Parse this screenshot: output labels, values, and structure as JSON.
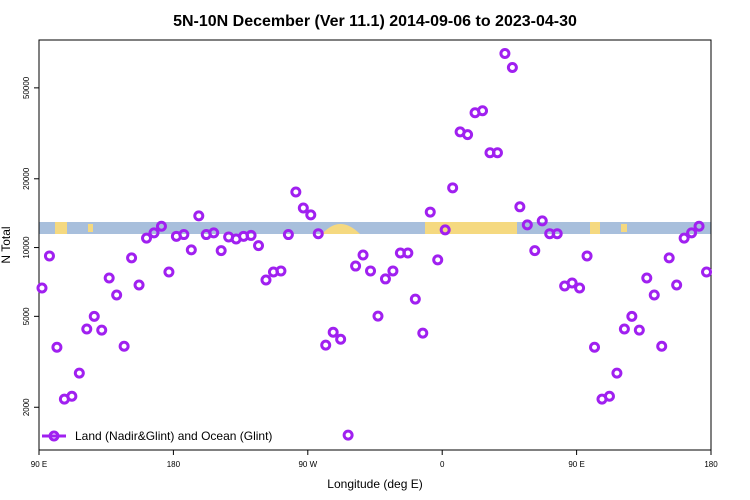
{
  "chart_data": {
    "type": "scatter",
    "title": "5N-10N December (Ver 11.1)   2014-09-06 to 2023-04-30",
    "x_label": "Longitude (deg E)",
    "y_label": "N Total",
    "log_y": true,
    "legend": "bottom-left",
    "xlim": [
      90,
      540
    ],
    "ylim": [
      1300,
      81000
    ],
    "xticks": [
      {
        "value": 90,
        "label": "90 E"
      },
      {
        "value": 180,
        "label": "180"
      },
      {
        "value": 270,
        "label": "90 W"
      },
      {
        "value": 360,
        "label": "0"
      },
      {
        "value": 450,
        "label": "90 E"
      },
      {
        "value": 540,
        "label": "180"
      }
    ],
    "yticks": [
      2000,
      5000,
      10000,
      20000,
      50000
    ],
    "series": [
      {
        "name": "Land (Nadir&Glint) and Ocean (Glint)",
        "color": "#a020f0",
        "x": [
          92,
          97,
          102,
          107,
          112,
          117,
          122,
          127,
          132,
          137,
          142,
          147,
          152,
          157,
          162,
          167,
          172,
          177,
          182,
          187,
          192,
          197,
          202,
          207,
          212,
          217,
          222,
          227,
          232,
          237,
          242,
          247,
          252,
          257,
          262,
          267,
          272,
          277,
          282,
          287,
          292,
          297,
          302,
          307,
          312,
          317,
          322,
          327,
          332,
          337,
          342,
          347,
          352,
          357,
          362,
          367,
          372,
          377,
          382,
          387,
          392,
          397,
          402,
          407,
          412,
          417,
          422,
          427,
          432,
          437,
          442,
          447,
          452,
          457,
          462,
          467,
          472,
          477,
          482,
          487,
          492,
          497,
          502,
          507,
          512,
          517,
          522,
          527,
          532,
          537
        ],
        "values": [
          6650,
          9190,
          3660,
          2170,
          2235,
          2820,
          4400,
          5000,
          4350,
          7360,
          6200,
          3700,
          9010,
          6860,
          11000,
          11600,
          12400,
          7820,
          11200,
          11400,
          9770,
          13760,
          11400,
          11600,
          9700,
          11130,
          10900,
          11200,
          11300,
          10200,
          7210,
          7820,
          7900,
          11400,
          17500,
          14900,
          13900,
          11500,
          3740,
          4260,
          3970,
          1510,
          8300,
          9280,
          7900,
          5010,
          7290,
          7900,
          9470,
          9470,
          5950,
          4220,
          14300,
          8830,
          11950,
          18260,
          32100,
          31200,
          38900,
          39700,
          26000,
          26000,
          70700,
          61400,
          15080,
          12570,
          9700,
          13090,
          11500,
          11500,
          6790,
          7000,
          6650,
          9190,
          3660,
          2170,
          2235,
          2820,
          4400,
          5000,
          4350,
          7360,
          6200,
          3700,
          9010,
          6860,
          11000,
          11600,
          12400,
          7820
        ]
      }
    ]
  }
}
